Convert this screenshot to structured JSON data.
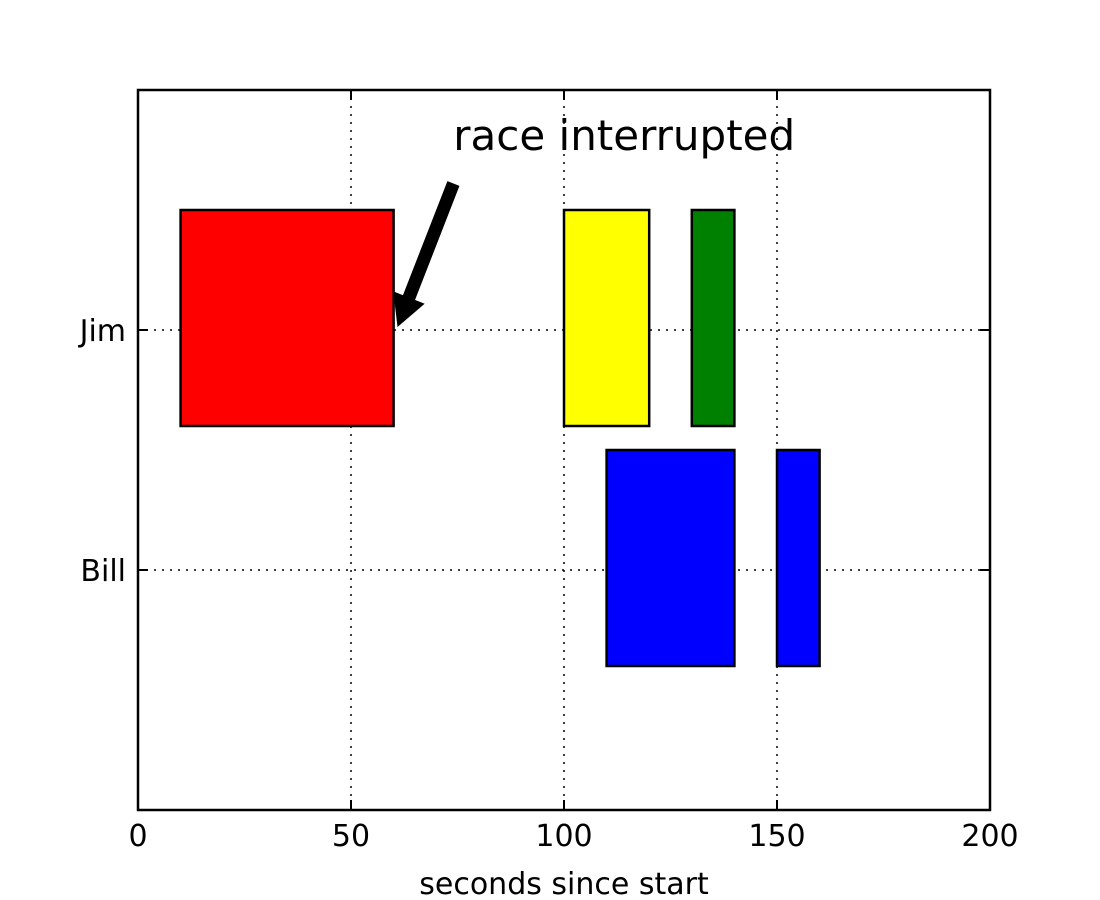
{
  "chart_data": {
    "type": "broken_barh",
    "xlabel": "seconds since start",
    "ylabel": "",
    "title": "",
    "xlim": [
      0,
      200
    ],
    "ylim": [
      5,
      35
    ],
    "x_ticks": [
      0,
      50,
      100,
      150,
      200
    ],
    "x_tick_labels": [
      "0",
      "50",
      "100",
      "150",
      "200"
    ],
    "y_ticks": [
      15,
      25
    ],
    "y_tick_labels": [
      "Bill",
      "Jim"
    ],
    "grid": true,
    "series": [
      {
        "name": "Jim",
        "y_range": [
          21,
          30
        ],
        "segments": [
          {
            "start": 10,
            "width": 50,
            "color": "#ff0000"
          },
          {
            "start": 100,
            "width": 20,
            "color": "#ffff00"
          },
          {
            "start": 130,
            "width": 10,
            "color": "#008000"
          }
        ]
      },
      {
        "name": "Bill",
        "y_range": [
          11,
          20
        ],
        "segments": [
          {
            "start": 110,
            "width": 30,
            "color": "#0000ff"
          },
          {
            "start": 150,
            "width": 10,
            "color": "#0000ff"
          }
        ]
      }
    ],
    "annotations": [
      {
        "text": "race interrupted",
        "xy": [
          61,
          25
        ],
        "xytext": [
          74,
          32.5
        ]
      }
    ]
  }
}
